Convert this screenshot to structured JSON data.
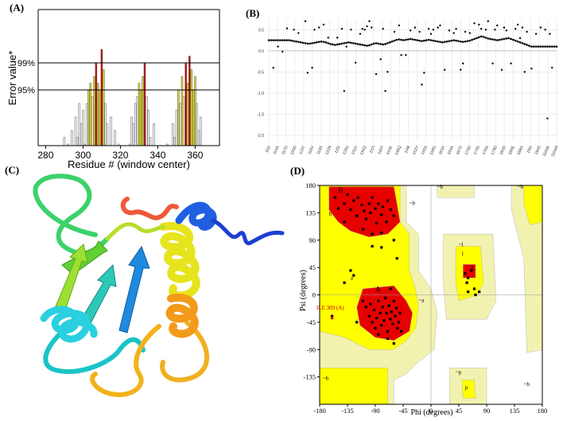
{
  "panels": {
    "a": {
      "label": "(A)"
    },
    "b": {
      "label": "(B)"
    },
    "c": {
      "label": "(C)"
    },
    "d": {
      "label": "(D)"
    }
  },
  "chart_data": [
    {
      "type": "bar",
      "panel": "A",
      "xlabel": "Residue # (window center)",
      "ylabel": "Error value*",
      "xlim": [
        276,
        373
      ],
      "ticks_x": [
        280,
        300,
        320,
        340,
        360
      ],
      "thresholds": [
        {
          "label": "99%",
          "value": 0.99
        },
        {
          "label": "95%",
          "value": 0.95
        }
      ],
      "colors": {
        "normal": "#ffffff",
        "above95": "#e3dc2a",
        "above99": "#cc0000"
      },
      "x_start": 277,
      "values": [
        0.72,
        0.78,
        0.75,
        0.86,
        0.81,
        0.79,
        0.85,
        0.82,
        0.77,
        0.83,
        0.8,
        0.86,
        0.82,
        0.88,
        0.84,
        0.87,
        0.8,
        0.89,
        0.86,
        0.91,
        0.88,
        0.93,
        0.9,
        0.92,
        0.87,
        0.93,
        0.95,
        0.96,
        0.94,
        0.97,
        0.99,
        0.96,
        0.95,
        1.01,
        0.98,
        0.93,
        0.9,
        0.86,
        0.91,
        0.84,
        0.89,
        0.82,
        0.87,
        0.8,
        0.86,
        0.78,
        0.83,
        0.81,
        0.87,
        0.91,
        0.9,
        0.93,
        0.94,
        0.96,
        0.95,
        0.97,
        0.99,
        0.94,
        0.92,
        0.88,
        0.84,
        0.9,
        0.86,
        0.82,
        0.78,
        0.85,
        0.8,
        0.84,
        0.87,
        0.81,
        0.86,
        0.9,
        0.88,
        0.92,
        0.95,
        0.93,
        0.97,
        0.94,
        0.99,
        0.96,
        1.0,
        0.98,
        0.95,
        0.97,
        0.93,
        0.89,
        0.91,
        0.86,
        0.82,
        0.85,
        0.8,
        0.76,
        0.84,
        0.79,
        0.73,
        0.7
      ]
    },
    {
      "type": "scatter",
      "panel": "B",
      "ylim": [
        -2.15,
        0.75
      ],
      "ticks_y": [
        0.5,
        0.0,
        -0.5,
        -1.0,
        -1.5,
        -2.0
      ],
      "x_labels": [
        "111I",
        "114A",
        "117D",
        "120D",
        "123T",
        "116V",
        "119S",
        "122N",
        "125I",
        "128V",
        "131Y",
        "134Q",
        "137I",
        "140T",
        "143K",
        "146Q",
        "149I",
        "152Y",
        "155S",
        "158G",
        "161K",
        "164A",
        "167S",
        "170D",
        "173S",
        "176A",
        "179D",
        "182D",
        "185E",
        "188G",
        "191I",
        "194S",
        "1100A",
        "1104R"
      ],
      "line_y": [
        0.25,
        0.25,
        0.25,
        0.25,
        0.25,
        0.25,
        0.25,
        0.25,
        0.25,
        0.25,
        0.24,
        0.23,
        0.22,
        0.21,
        0.2,
        0.19,
        0.18,
        0.17,
        0.17,
        0.18,
        0.19,
        0.2,
        0.21,
        0.22,
        0.21,
        0.2,
        0.18,
        0.16,
        0.15,
        0.14,
        0.15,
        0.16,
        0.17,
        0.18,
        0.19,
        0.2,
        0.19,
        0.18,
        0.17,
        0.16,
        0.15,
        0.14,
        0.13,
        0.12,
        0.13,
        0.15,
        0.17,
        0.18,
        0.17,
        0.16,
        0.15,
        0.16,
        0.18,
        0.2,
        0.22,
        0.24,
        0.26,
        0.27,
        0.26,
        0.25,
        0.26,
        0.27,
        0.28,
        0.27,
        0.26,
        0.25,
        0.24,
        0.23,
        0.24,
        0.25,
        0.26,
        0.25,
        0.24,
        0.23,
        0.22,
        0.21,
        0.2,
        0.21,
        0.22,
        0.23,
        0.24,
        0.25,
        0.24,
        0.23,
        0.22,
        0.21,
        0.22,
        0.23,
        0.24,
        0.26,
        0.28,
        0.3,
        0.32,
        0.34,
        0.33,
        0.31,
        0.29,
        0.28,
        0.27,
        0.26,
        0.25,
        0.26,
        0.27,
        0.28,
        0.29,
        0.3,
        0.28,
        0.26,
        0.24,
        0.22,
        0.2,
        0.18,
        0.16,
        0.14,
        0.12,
        0.1,
        0.1,
        0.1,
        0.1,
        0.1,
        0.1,
        0.1,
        0.1,
        0.1,
        0.1,
        0.1,
        0.1
      ],
      "points": [
        [
          2,
          -0.4
        ],
        [
          4,
          0.1
        ],
        [
          6,
          -0.02
        ],
        [
          8,
          0.53
        ],
        [
          11,
          0.5
        ],
        [
          13,
          0.42
        ],
        [
          16,
          0.7
        ],
        [
          17,
          -0.52
        ],
        [
          19,
          -0.4
        ],
        [
          20,
          0.5
        ],
        [
          22,
          0.55
        ],
        [
          24,
          0.62
        ],
        [
          26,
          0.31
        ],
        [
          30,
          0.31
        ],
        [
          32,
          0.52
        ],
        [
          33,
          -0.95
        ],
        [
          34,
          0.1
        ],
        [
          36,
          0.5
        ],
        [
          38,
          -0.28
        ],
        [
          40,
          0.4
        ],
        [
          41,
          0.52
        ],
        [
          42,
          0.5
        ],
        [
          43,
          0.58
        ],
        [
          44,
          0.7
        ],
        [
          45,
          0.55
        ],
        [
          47,
          -0.55
        ],
        [
          49,
          -0.2
        ],
        [
          50,
          0.52
        ],
        [
          51,
          -0.95
        ],
        [
          52,
          -0.5
        ],
        [
          55,
          0.45
        ],
        [
          57,
          0.6
        ],
        [
          58,
          -0.1
        ],
        [
          60,
          -0.1
        ],
        [
          62,
          0.48
        ],
        [
          64,
          0.55
        ],
        [
          66,
          0.45
        ],
        [
          67,
          -0.8
        ],
        [
          68,
          -0.52
        ],
        [
          70,
          0.52
        ],
        [
          71,
          0.4
        ],
        [
          72,
          0.5
        ],
        [
          74,
          0.55
        ],
        [
          75,
          0.6
        ],
        [
          77,
          -0.45
        ],
        [
          79,
          0.48
        ],
        [
          81,
          0.42
        ],
        [
          82,
          0.52
        ],
        [
          84,
          -0.45
        ],
        [
          85,
          -0.3
        ],
        [
          86,
          0.45
        ],
        [
          88,
          0.42
        ],
        [
          90,
          0.65
        ],
        [
          92,
          0.62
        ],
        [
          93,
          0.52
        ],
        [
          95,
          0.5
        ],
        [
          96,
          0.7
        ],
        [
          98,
          -0.3
        ],
        [
          99,
          0.5
        ],
        [
          100,
          0.6
        ],
        [
          102,
          -0.45
        ],
        [
          103,
          0.55
        ],
        [
          104,
          0.48
        ],
        [
          106,
          -0.3
        ],
        [
          108,
          0.52
        ],
        [
          109,
          0.62
        ],
        [
          110,
          0.3
        ],
        [
          111,
          0.55
        ],
        [
          112,
          -0.5
        ],
        [
          113,
          0.45
        ],
        [
          115,
          -0.42
        ],
        [
          117,
          0.4
        ],
        [
          119,
          0.55
        ],
        [
          121,
          0.5
        ],
        [
          122,
          -1.6
        ],
        [
          123,
          0.4
        ],
        [
          124,
          -0.4
        ]
      ]
    },
    {
      "type": "scatter",
      "panel": "D",
      "title": "",
      "xlabel": "Phi (degrees)",
      "ylabel": "Psi (degrees)",
      "xlim": [
        -180,
        180
      ],
      "ylim": [
        -180,
        180
      ],
      "ticks_x": [
        -180,
        -135,
        -90,
        -45,
        0,
        45,
        90,
        135,
        180
      ],
      "ticks_y": [
        180,
        135,
        90,
        45,
        0,
        -45,
        -90,
        -135
      ],
      "region_labels": {
        "B": "B",
        "b": "b",
        "a": "a",
        "A": "A",
        "l": "l",
        "L": "L",
        "p": "p",
        "tilde_b": "~b",
        "tilde_a": "~a",
        "tilde_l": "~l",
        "tilde_p": "~p"
      },
      "annotation": "ILE 309 (A)",
      "colors": {
        "core": "#e60000",
        "allowed": "#ffff00",
        "generous": "#f2f2b0",
        "disallowed": "#ffffff",
        "point": "#000000",
        "annotation": "#cc0000"
      },
      "points": [
        [
          -155,
          160
        ],
        [
          -150,
          142
        ],
        [
          -140,
          150
        ],
        [
          -135,
          165
        ],
        [
          -130,
          140
        ],
        [
          -125,
          155
        ],
        [
          -120,
          130
        ],
        [
          -118,
          160
        ],
        [
          -112,
          148
        ],
        [
          -108,
          138
        ],
        [
          -105,
          125
        ],
        [
          -100,
          150
        ],
        [
          -98,
          135
        ],
        [
          -95,
          160
        ],
        [
          -90,
          142
        ],
        [
          -88,
          118
        ],
        [
          -85,
          150
        ],
        [
          -80,
          132
        ],
        [
          -78,
          145
        ],
        [
          -72,
          120
        ],
        [
          -70,
          155
        ],
        [
          -65,
          140
        ],
        [
          -60,
          130
        ],
        [
          -110,
          108
        ],
        [
          -95,
          100
        ],
        [
          -140,
          120
        ],
        [
          -80,
          102
        ],
        [
          -130,
          40
        ],
        [
          -125,
          32
        ],
        [
          -95,
          80
        ],
        [
          -80,
          78
        ],
        [
          -60,
          90
        ],
        [
          -55,
          60
        ],
        [
          -110,
          -10
        ],
        [
          -105,
          -20
        ],
        [
          -100,
          -35
        ],
        [
          -98,
          -15
        ],
        [
          -95,
          -45
        ],
        [
          -92,
          -25
        ],
        [
          -90,
          -55
        ],
        [
          -88,
          -38
        ],
        [
          -85,
          -10
        ],
        [
          -82,
          -30
        ],
        [
          -80,
          -50
        ],
        [
          -78,
          -20
        ],
        [
          -76,
          -42
        ],
        [
          -74,
          -5
        ],
        [
          -72,
          -30
        ],
        [
          -70,
          -60
        ],
        [
          -68,
          -18
        ],
        [
          -66,
          -40
        ],
        [
          -64,
          -28
        ],
        [
          -62,
          -48
        ],
        [
          -60,
          -10
        ],
        [
          -58,
          -35
        ],
        [
          -56,
          -22
        ],
        [
          -54,
          -55
        ],
        [
          -52,
          -45
        ],
        [
          -50,
          -30
        ],
        [
          -85,
          -65
        ],
        [
          -70,
          -72
        ],
        [
          -65,
          10
        ],
        [
          -60,
          -80
        ],
        [
          -120,
          -45
        ],
        [
          -48,
          -60
        ],
        [
          55,
          35
        ],
        [
          60,
          28
        ],
        [
          58,
          20
        ],
        [
          70,
          10
        ],
        [
          72,
          0
        ],
        [
          78,
          5
        ],
        [
          65,
          40
        ],
        [
          60,
          5
        ],
        [
          -160,
          -35
        ],
        [
          -140,
          20
        ]
      ]
    }
  ]
}
